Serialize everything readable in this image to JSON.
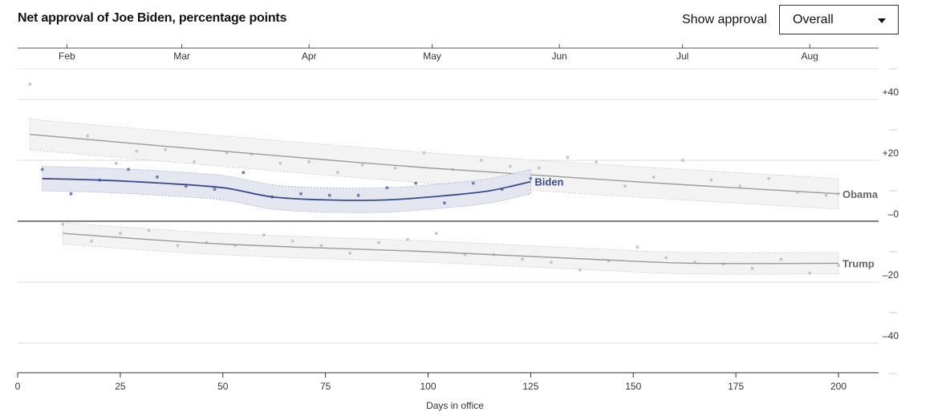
{
  "header": {
    "title": "Net approval of Joe Biden, percentage points",
    "control_label": "Show approval",
    "select_value": "Overall"
  },
  "chart_data": {
    "type": "line",
    "title": "Net approval of Joe Biden, percentage points",
    "xlabel": "Days in office",
    "ylabel": "",
    "xlim": [
      0,
      210
    ],
    "ylim": [
      -50,
      50
    ],
    "x_ticks": [
      0,
      25,
      50,
      75,
      100,
      125,
      150,
      175,
      200
    ],
    "y_ticks": [
      {
        "value": 40,
        "label": "+40"
      },
      {
        "value": 20,
        "label": "+20"
      },
      {
        "value": 0,
        "label": "–0"
      },
      {
        "value": -20,
        "label": "–20"
      },
      {
        "value": -40,
        "label": "–40"
      }
    ],
    "month_ticks": [
      {
        "label": "Feb",
        "x": 12
      },
      {
        "label": "Mar",
        "x": 40
      },
      {
        "label": "Apr",
        "x": 71
      },
      {
        "label": "May",
        "x": 101
      },
      {
        "label": "Jun",
        "x": 132
      },
      {
        "label": "Jul",
        "x": 162
      },
      {
        "label": "Aug",
        "x": 193
      }
    ],
    "grid": true,
    "colors": {
      "biden": "#3b4a8c",
      "grey_line": "#9b9b9b",
      "band": "#f0f0f0",
      "biden_band": "#e3e5ef",
      "dots": "#c8c8c8",
      "biden_dots": "#7a80b0"
    },
    "series": [
      {
        "name": "Biden",
        "x": [
          6,
          20,
          35,
          50,
          62,
          75,
          90,
          105,
          115,
          125
        ],
        "y": [
          14,
          13.5,
          12.5,
          11,
          8,
          7,
          7,
          8.5,
          10,
          13
        ],
        "band": 4,
        "points": [
          {
            "x": 6,
            "y": 17
          },
          {
            "x": 13,
            "y": 9
          },
          {
            "x": 20,
            "y": 13.5
          },
          {
            "x": 27,
            "y": 17
          },
          {
            "x": 34,
            "y": 14.5
          },
          {
            "x": 41,
            "y": 11.5
          },
          {
            "x": 48,
            "y": 10.5
          },
          {
            "x": 55,
            "y": 16
          },
          {
            "x": 62,
            "y": 8
          },
          {
            "x": 69,
            "y": 9
          },
          {
            "x": 76,
            "y": 8.5
          },
          {
            "x": 83,
            "y": 8.5
          },
          {
            "x": 90,
            "y": 11
          },
          {
            "x": 97,
            "y": 12.5
          },
          {
            "x": 104,
            "y": 6
          },
          {
            "x": 111,
            "y": 12.5
          },
          {
            "x": 118,
            "y": 10.5
          },
          {
            "x": 125,
            "y": 14
          }
        ]
      },
      {
        "name": "Obama",
        "x": [
          3,
          50,
          100,
          150,
          200
        ],
        "y": [
          28.5,
          23,
          17.5,
          13,
          9
        ],
        "band": 5,
        "points": [
          {
            "x": 3,
            "y": 45
          },
          {
            "x": 17,
            "y": 28
          },
          {
            "x": 24,
            "y": 19
          },
          {
            "x": 29,
            "y": 23
          },
          {
            "x": 36,
            "y": 23.5
          },
          {
            "x": 43,
            "y": 19.5
          },
          {
            "x": 51,
            "y": 22.5
          },
          {
            "x": 57,
            "y": 22
          },
          {
            "x": 64,
            "y": 19
          },
          {
            "x": 71,
            "y": 19.5
          },
          {
            "x": 78,
            "y": 16
          },
          {
            "x": 84,
            "y": 18.5
          },
          {
            "x": 92,
            "y": 17.5
          },
          {
            "x": 99,
            "y": 22.5
          },
          {
            "x": 106,
            "y": 17
          },
          {
            "x": 113,
            "y": 20
          },
          {
            "x": 120,
            "y": 18
          },
          {
            "x": 127,
            "y": 17.5
          },
          {
            "x": 134,
            "y": 21
          },
          {
            "x": 141,
            "y": 19.5
          },
          {
            "x": 148,
            "y": 11.5
          },
          {
            "x": 155,
            "y": 14.5
          },
          {
            "x": 162,
            "y": 20
          },
          {
            "x": 169,
            "y": 13.5
          },
          {
            "x": 176,
            "y": 11.5
          },
          {
            "x": 183,
            "y": 14
          },
          {
            "x": 190,
            "y": 9.5
          },
          {
            "x": 197,
            "y": 8.5
          },
          {
            "x": 200,
            "y": 9
          }
        ]
      },
      {
        "name": "Trump",
        "x": [
          11,
          50,
          100,
          140,
          165,
          200
        ],
        "y": [
          -4,
          -7.5,
          -10,
          -12.5,
          -13.8,
          -13.8
        ],
        "band": 3.5,
        "points": [
          {
            "x": 11,
            "y": -1
          },
          {
            "x": 18,
            "y": -6.5
          },
          {
            "x": 25,
            "y": -4
          },
          {
            "x": 32,
            "y": -3
          },
          {
            "x": 39,
            "y": -8
          },
          {
            "x": 46,
            "y": -7
          },
          {
            "x": 53,
            "y": -8
          },
          {
            "x": 60,
            "y": -4.5
          },
          {
            "x": 67,
            "y": -6.5
          },
          {
            "x": 74,
            "y": -8
          },
          {
            "x": 81,
            "y": -10.5
          },
          {
            "x": 88,
            "y": -7
          },
          {
            "x": 95,
            "y": -6
          },
          {
            "x": 102,
            "y": -4
          },
          {
            "x": 109,
            "y": -11
          },
          {
            "x": 116,
            "y": -11
          },
          {
            "x": 123,
            "y": -12.5
          },
          {
            "x": 130,
            "y": -13.5
          },
          {
            "x": 137,
            "y": -16
          },
          {
            "x": 144,
            "y": -13
          },
          {
            "x": 151,
            "y": -8.5
          },
          {
            "x": 158,
            "y": -12
          },
          {
            "x": 165,
            "y": -13.5
          },
          {
            "x": 172,
            "y": -14
          },
          {
            "x": 179,
            "y": -15.5
          },
          {
            "x": 186,
            "y": -12.5
          },
          {
            "x": 193,
            "y": -17
          },
          {
            "x": 200,
            "y": -14.5
          }
        ]
      }
    ]
  }
}
